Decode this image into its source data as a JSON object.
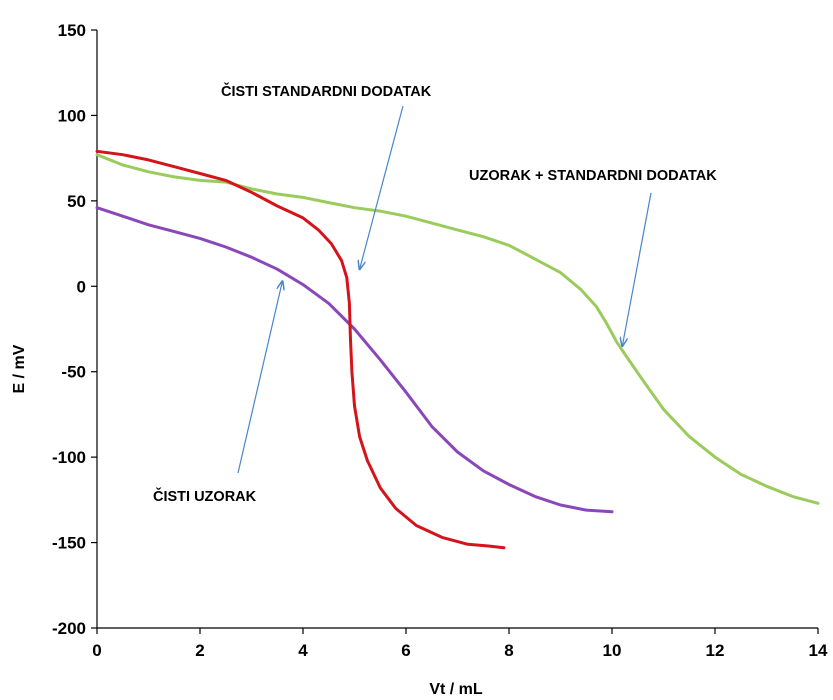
{
  "chart_data": {
    "type": "line",
    "xlabel": "Vt / mL",
    "ylabel": "E / mV",
    "xlim": [
      0,
      14
    ],
    "ylim": [
      -200,
      150
    ],
    "x_ticks": [
      "0",
      "2",
      "4",
      "6",
      "8",
      "10",
      "12",
      "14"
    ],
    "y_ticks": [
      "150",
      "100",
      "50",
      "0",
      "-50",
      "-100",
      "-150",
      "-200"
    ],
    "grid": false,
    "legend": "none",
    "series": [
      {
        "color": "#d4141c",
        "points": [
          [
            0,
            79
          ],
          [
            0.5,
            77
          ],
          [
            1,
            74
          ],
          [
            1.5,
            70
          ],
          [
            2,
            66
          ],
          [
            2.5,
            62
          ],
          [
            3,
            55
          ],
          [
            3.5,
            47
          ],
          [
            4,
            40
          ],
          [
            4.3,
            33
          ],
          [
            4.55,
            25
          ],
          [
            4.75,
            15
          ],
          [
            4.85,
            5
          ],
          [
            4.9,
            -10
          ],
          [
            4.92,
            -30
          ],
          [
            4.95,
            -50
          ],
          [
            5.0,
            -70
          ],
          [
            5.1,
            -88
          ],
          [
            5.25,
            -102
          ],
          [
            5.5,
            -118
          ],
          [
            5.8,
            -130
          ],
          [
            6.2,
            -140
          ],
          [
            6.7,
            -147
          ],
          [
            7.2,
            -151
          ],
          [
            7.6,
            -152
          ],
          [
            7.9,
            -153
          ]
        ]
      },
      {
        "color": "#9acb5c",
        "points": [
          [
            0,
            77
          ],
          [
            0.5,
            71
          ],
          [
            1,
            67
          ],
          [
            1.5,
            64
          ],
          [
            2,
            62
          ],
          [
            2.5,
            61
          ],
          [
            3,
            57
          ],
          [
            3.5,
            54
          ],
          [
            4,
            52
          ],
          [
            4.5,
            49
          ],
          [
            5,
            46
          ],
          [
            5.5,
            44
          ],
          [
            6,
            41
          ],
          [
            6.5,
            37
          ],
          [
            7,
            33
          ],
          [
            7.5,
            29
          ],
          [
            8,
            24
          ],
          [
            8.5,
            16
          ],
          [
            9,
            8
          ],
          [
            9.4,
            -2
          ],
          [
            9.7,
            -12
          ],
          [
            9.9,
            -22
          ],
          [
            10.1,
            -33
          ],
          [
            10.3,
            -42
          ],
          [
            10.6,
            -55
          ],
          [
            11,
            -72
          ],
          [
            11.5,
            -88
          ],
          [
            12,
            -100
          ],
          [
            12.5,
            -110
          ],
          [
            13,
            -117
          ],
          [
            13.5,
            -123
          ],
          [
            14,
            -127
          ]
        ]
      },
      {
        "color": "#8a47b9",
        "points": [
          [
            0,
            46
          ],
          [
            0.5,
            41
          ],
          [
            1,
            36
          ],
          [
            1.5,
            32
          ],
          [
            2,
            28
          ],
          [
            2.5,
            23
          ],
          [
            3,
            17
          ],
          [
            3.5,
            10
          ],
          [
            4,
            1
          ],
          [
            4.5,
            -10
          ],
          [
            5,
            -25
          ],
          [
            5.5,
            -43
          ],
          [
            6,
            -62
          ],
          [
            6.5,
            -82
          ],
          [
            7,
            -97
          ],
          [
            7.5,
            -108
          ],
          [
            8,
            -116
          ],
          [
            8.5,
            -123
          ],
          [
            9,
            -128
          ],
          [
            9.5,
            -131
          ],
          [
            10,
            -132
          ]
        ]
      }
    ],
    "annotations": [
      {
        "text": "ČISTI STANDARDNI DODATAK",
        "arrow_to": [
          5.1,
          10
        ]
      },
      {
        "text": "UZORAK + STANDARDNI DODATAK",
        "arrow_to": [
          10.2,
          -35
        ]
      },
      {
        "text": "ČISTI UZORAK",
        "arrow_to": [
          3.6,
          3
        ]
      }
    ]
  }
}
